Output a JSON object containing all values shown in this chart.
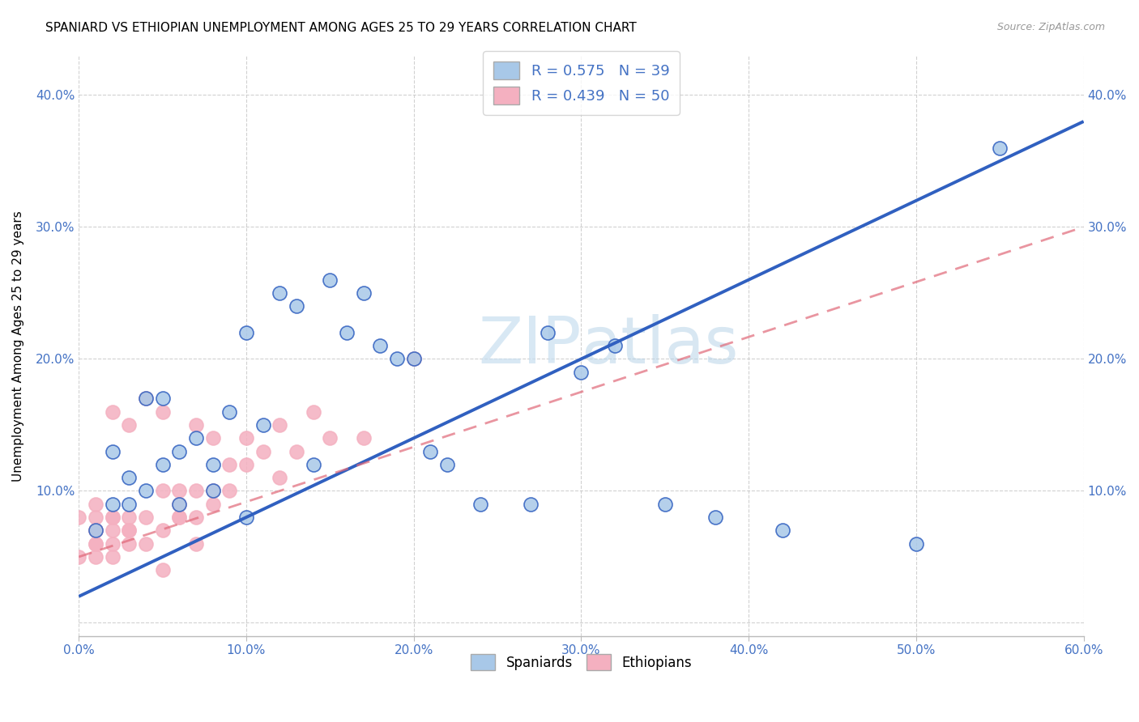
{
  "title": "SPANIARD VS ETHIOPIAN UNEMPLOYMENT AMONG AGES 25 TO 29 YEARS CORRELATION CHART",
  "source": "Source: ZipAtlas.com",
  "ylabel": "Unemployment Among Ages 25 to 29 years",
  "xlim": [
    0.0,
    0.6
  ],
  "ylim": [
    -0.01,
    0.43
  ],
  "xticks": [
    0.0,
    0.1,
    0.2,
    0.3,
    0.4,
    0.5,
    0.6
  ],
  "yticks": [
    0.0,
    0.1,
    0.2,
    0.3,
    0.4
  ],
  "xtick_labels": [
    "0.0%",
    "10.0%",
    "20.0%",
    "30.0%",
    "40.0%",
    "50.0%",
    "60.0%"
  ],
  "ytick_labels": [
    "",
    "10.0%",
    "20.0%",
    "30.0%",
    "40.0%"
  ],
  "spaniards_R": "0.575",
  "spaniards_N": "39",
  "ethiopians_R": "0.439",
  "ethiopians_N": "50",
  "spaniard_color": "#a8c8e8",
  "ethiopian_color": "#f4b0c0",
  "spaniard_line_color": "#3060c0",
  "ethiopian_line_color": "#e06878",
  "watermark_color": "#c8dff0",
  "spaniards_x": [
    0.01,
    0.02,
    0.02,
    0.03,
    0.03,
    0.04,
    0.04,
    0.05,
    0.05,
    0.06,
    0.06,
    0.07,
    0.08,
    0.08,
    0.09,
    0.1,
    0.1,
    0.11,
    0.12,
    0.13,
    0.14,
    0.15,
    0.16,
    0.17,
    0.18,
    0.19,
    0.2,
    0.21,
    0.22,
    0.24,
    0.27,
    0.28,
    0.3,
    0.32,
    0.35,
    0.38,
    0.42,
    0.5,
    0.55
  ],
  "spaniards_y": [
    0.07,
    0.09,
    0.13,
    0.09,
    0.11,
    0.1,
    0.17,
    0.12,
    0.17,
    0.09,
    0.13,
    0.14,
    0.12,
    0.1,
    0.16,
    0.08,
    0.22,
    0.15,
    0.25,
    0.24,
    0.12,
    0.26,
    0.22,
    0.25,
    0.21,
    0.2,
    0.2,
    0.13,
    0.12,
    0.09,
    0.09,
    0.22,
    0.19,
    0.21,
    0.09,
    0.08,
    0.07,
    0.06,
    0.36
  ],
  "ethiopians_x": [
    0.0,
    0.0,
    0.01,
    0.01,
    0.01,
    0.01,
    0.01,
    0.01,
    0.01,
    0.02,
    0.02,
    0.02,
    0.02,
    0.02,
    0.02,
    0.03,
    0.03,
    0.03,
    0.03,
    0.03,
    0.04,
    0.04,
    0.04,
    0.05,
    0.05,
    0.05,
    0.05,
    0.06,
    0.06,
    0.06,
    0.06,
    0.07,
    0.07,
    0.07,
    0.07,
    0.08,
    0.08,
    0.08,
    0.09,
    0.09,
    0.1,
    0.1,
    0.11,
    0.12,
    0.12,
    0.13,
    0.14,
    0.15,
    0.17,
    0.2
  ],
  "ethiopians_y": [
    0.05,
    0.08,
    0.05,
    0.06,
    0.06,
    0.07,
    0.07,
    0.08,
    0.09,
    0.05,
    0.06,
    0.07,
    0.08,
    0.08,
    0.16,
    0.06,
    0.07,
    0.07,
    0.08,
    0.15,
    0.06,
    0.08,
    0.17,
    0.04,
    0.07,
    0.1,
    0.16,
    0.08,
    0.08,
    0.09,
    0.1,
    0.06,
    0.08,
    0.1,
    0.15,
    0.09,
    0.1,
    0.14,
    0.1,
    0.12,
    0.12,
    0.14,
    0.13,
    0.11,
    0.15,
    0.13,
    0.16,
    0.14,
    0.14,
    0.2
  ],
  "sp_line_x": [
    0.0,
    0.6
  ],
  "sp_line_y": [
    0.02,
    0.38
  ],
  "et_line_x": [
    0.0,
    0.6
  ],
  "et_line_y": [
    0.05,
    0.3
  ]
}
